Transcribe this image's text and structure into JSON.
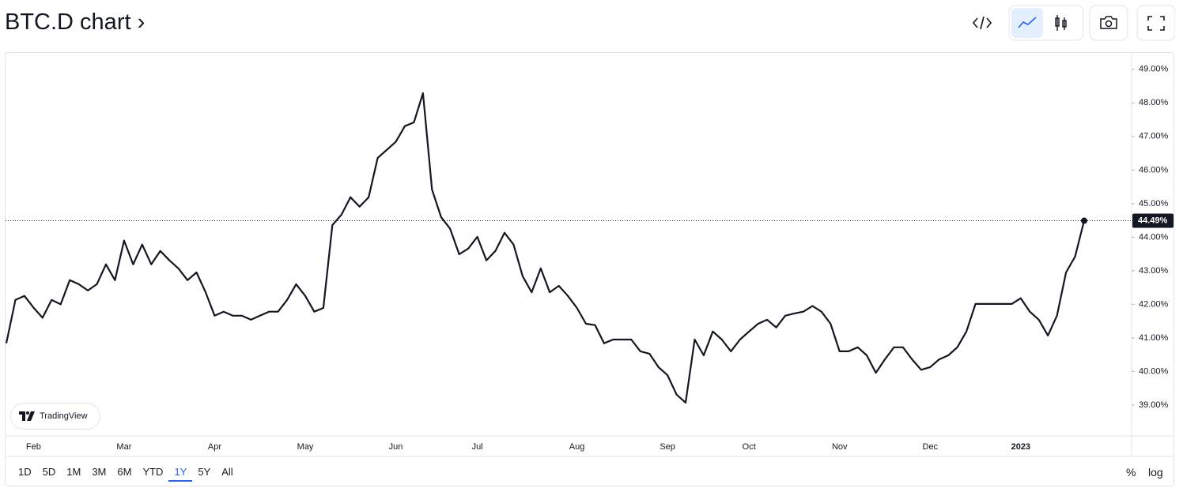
{
  "title": "BTC.D chart ›",
  "watermark": "TradingView",
  "range_buttons": [
    "1D",
    "5D",
    "1M",
    "3M",
    "6M",
    "YTD",
    "1Y",
    "5Y",
    "All"
  ],
  "active_range_index": 6,
  "percent_toggle": "%",
  "log_toggle": "log",
  "chart_data": {
    "type": "line",
    "categories": [
      null,
      null,
      null,
      "Feb",
      null,
      null,
      null,
      null,
      null,
      null,
      null,
      null,
      null,
      "Mar",
      null,
      null,
      null,
      null,
      null,
      null,
      null,
      null,
      null,
      "Apr",
      null,
      null,
      null,
      null,
      null,
      null,
      null,
      null,
      null,
      "May",
      null,
      null,
      null,
      null,
      null,
      null,
      null,
      null,
      null,
      "Jun",
      null,
      null,
      null,
      null,
      null,
      null,
      null,
      null,
      "Jul",
      null,
      null,
      null,
      null,
      null,
      null,
      null,
      null,
      null,
      null,
      "Aug",
      null,
      null,
      null,
      null,
      null,
      null,
      null,
      null,
      null,
      "Sep",
      null,
      null,
      null,
      null,
      null,
      null,
      null,
      null,
      "Oct",
      null,
      null,
      null,
      null,
      null,
      null,
      null,
      null,
      null,
      "Nov",
      null,
      null,
      null,
      null,
      null,
      null,
      null,
      null,
      null,
      "Dec",
      null,
      null,
      null,
      null,
      null,
      null,
      null,
      null,
      null,
      "2023",
      null,
      null,
      null,
      null,
      null,
      null,
      null
    ],
    "series": [
      {
        "name": "BTC.D",
        "color": "#131722",
        "values": [
          40.84,
          42.13,
          42.25,
          41.9,
          41.6,
          42.13,
          42.0,
          42.72,
          42.6,
          42.41,
          42.6,
          43.19,
          42.72,
          43.9,
          43.19,
          43.78,
          43.19,
          43.59,
          43.31,
          43.07,
          42.72,
          42.95,
          42.36,
          41.66,
          41.78,
          41.66,
          41.66,
          41.54,
          41.66,
          41.78,
          41.78,
          42.13,
          42.6,
          42.25,
          41.78,
          41.89,
          44.36,
          44.67,
          45.19,
          44.91,
          45.19,
          46.36,
          46.6,
          46.84,
          47.31,
          47.42,
          48.29,
          45.42,
          44.6,
          44.25,
          43.49,
          43.66,
          44.01,
          43.31,
          43.59,
          44.13,
          43.78,
          42.84,
          42.36,
          43.07,
          42.36,
          42.55,
          42.25,
          41.89,
          41.42,
          41.38,
          40.84,
          40.95,
          40.95,
          40.95,
          40.6,
          40.53,
          40.13,
          39.89,
          39.31,
          39.07,
          40.95,
          40.48,
          41.19,
          40.95,
          40.6,
          40.95,
          41.19,
          41.42,
          41.54,
          41.31,
          41.66,
          41.73,
          41.78,
          41.95,
          41.78,
          41.42,
          40.6,
          40.6,
          40.72,
          40.48,
          39.96,
          40.36,
          40.72,
          40.72,
          40.36,
          40.05,
          40.13,
          40.36,
          40.48,
          40.72,
          41.19,
          42.01,
          42.01,
          42.01,
          42.01,
          42.01,
          42.18,
          41.78,
          41.54,
          41.07,
          41.66,
          42.95,
          43.42,
          44.49
        ]
      }
    ],
    "current_value_label": "44.49%",
    "ylim": [
      38.08,
      49.49
    ],
    "yticks": [
      {
        "value": 39,
        "label": "39.00%"
      },
      {
        "value": 40,
        "label": "40.00%"
      },
      {
        "value": 41,
        "label": "41.00%"
      },
      {
        "value": 42,
        "label": "42.00%"
      },
      {
        "value": 43,
        "label": "43.00%"
      },
      {
        "value": 44,
        "label": "44.00%"
      },
      {
        "value": 45,
        "label": "45.00%"
      },
      {
        "value": 46,
        "label": "46.00%"
      },
      {
        "value": 47,
        "label": "47.00%"
      },
      {
        "value": 48,
        "label": "48.00%"
      },
      {
        "value": 49,
        "label": "49.00%"
      }
    ],
    "grid": false,
    "log_scale": false
  }
}
